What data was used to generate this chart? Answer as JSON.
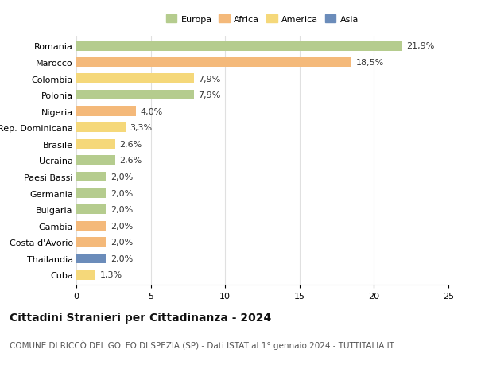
{
  "countries": [
    "Romania",
    "Marocco",
    "Colombia",
    "Polonia",
    "Nigeria",
    "Rep. Dominicana",
    "Brasile",
    "Ucraina",
    "Paesi Bassi",
    "Germania",
    "Bulgaria",
    "Gambia",
    "Costa d'Avorio",
    "Thailandia",
    "Cuba"
  ],
  "values": [
    21.9,
    18.5,
    7.9,
    7.9,
    4.0,
    3.3,
    2.6,
    2.6,
    2.0,
    2.0,
    2.0,
    2.0,
    2.0,
    2.0,
    1.3
  ],
  "labels": [
    "21,9%",
    "18,5%",
    "7,9%",
    "7,9%",
    "4,0%",
    "3,3%",
    "2,6%",
    "2,6%",
    "2,0%",
    "2,0%",
    "2,0%",
    "2,0%",
    "2,0%",
    "2,0%",
    "1,3%"
  ],
  "colors": [
    "#b5cc8e",
    "#f4b97a",
    "#f5d87a",
    "#b5cc8e",
    "#f4b97a",
    "#f5d87a",
    "#f5d87a",
    "#b5cc8e",
    "#b5cc8e",
    "#b5cc8e",
    "#b5cc8e",
    "#f4b97a",
    "#f4b97a",
    "#6b8cba",
    "#f5d87a"
  ],
  "legend_labels": [
    "Europa",
    "Africa",
    "America",
    "Asia"
  ],
  "legend_colors": [
    "#b5cc8e",
    "#f4b97a",
    "#f5d87a",
    "#6b8cba"
  ],
  "xlim": [
    0,
    25
  ],
  "xticks": [
    0,
    5,
    10,
    15,
    20,
    25
  ],
  "title": "Cittadini Stranieri per Cittadinanza - 2024",
  "subtitle": "COMUNE DI RICCÒ DEL GOLFO DI SPEZIA (SP) - Dati ISTAT al 1° gennaio 2024 - TUTTITALIA.IT",
  "background_color": "#ffffff",
  "bar_height": 0.6,
  "label_fontsize": 8,
  "ytick_fontsize": 8,
  "xtick_fontsize": 8,
  "title_fontsize": 10,
  "subtitle_fontsize": 7.5,
  "grid_color": "#e0e0e0",
  "text_color": "#333333"
}
